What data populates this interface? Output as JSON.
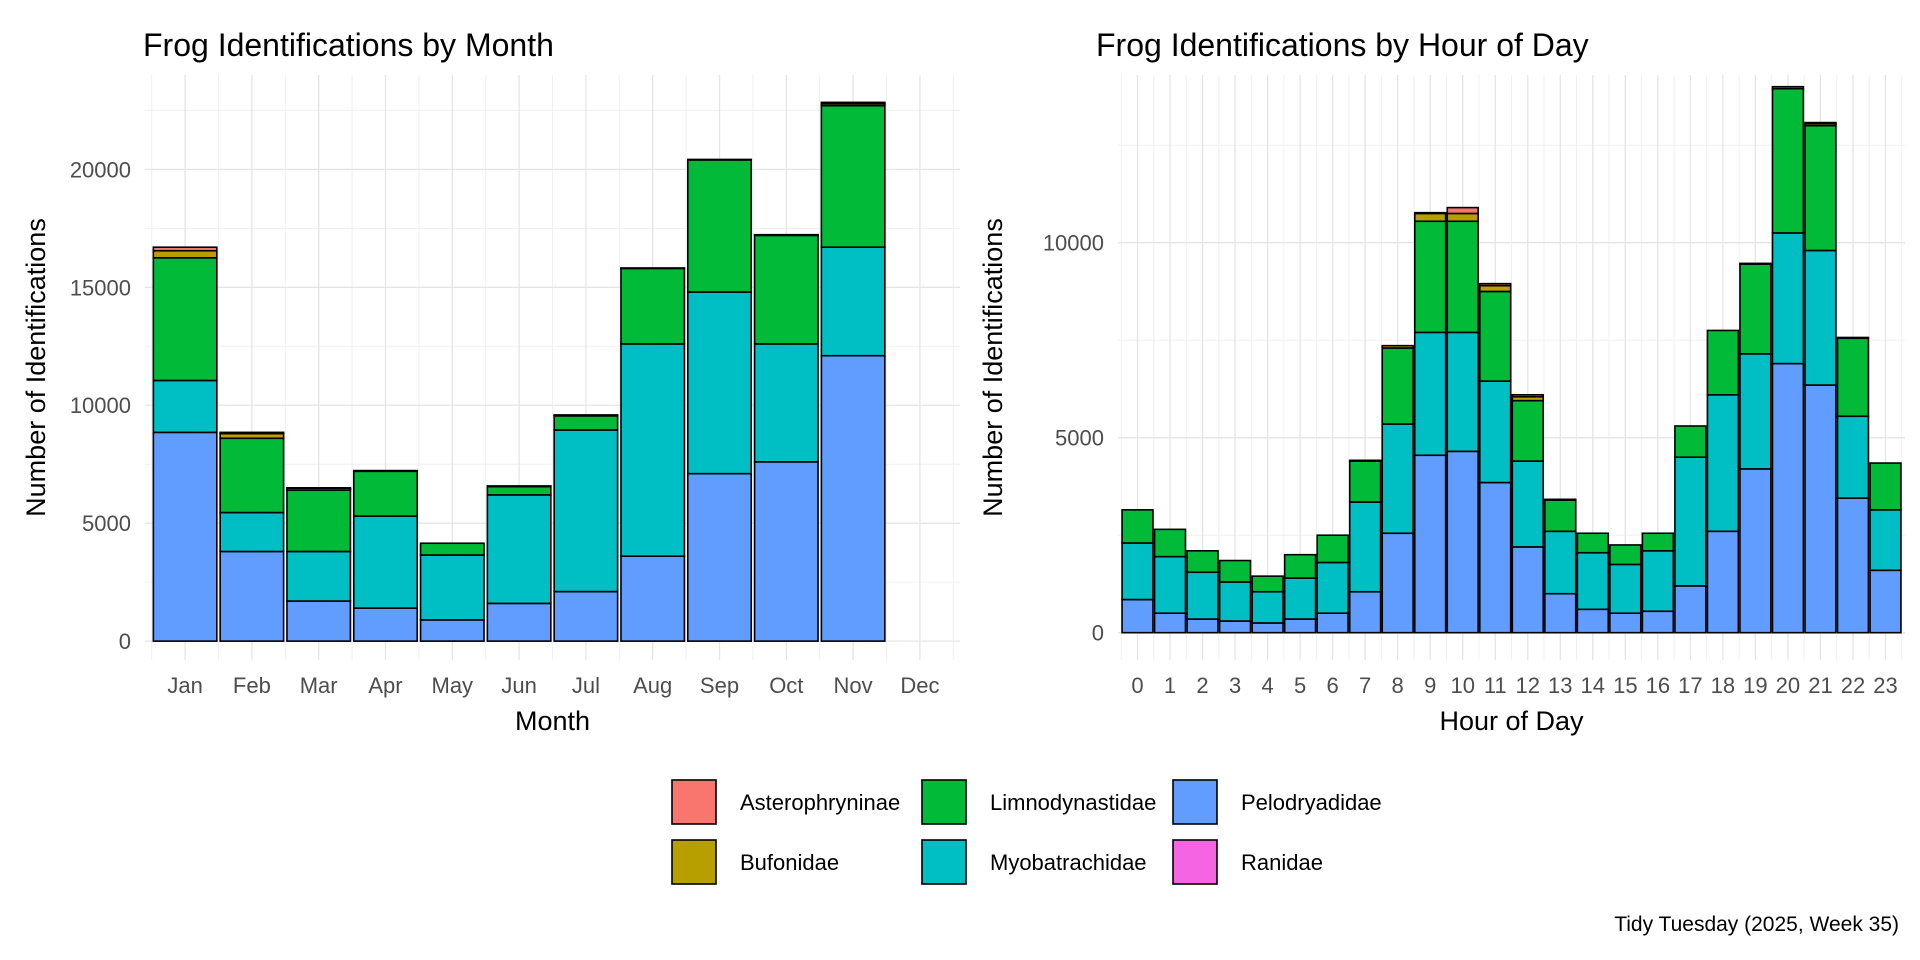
{
  "chart_data": [
    {
      "type": "bar",
      "stacked": true,
      "title": "Frog Identifications by Month",
      "xlabel": "Month",
      "ylabel": "Number of Identifications",
      "categories": [
        "Jan",
        "Feb",
        "Mar",
        "Apr",
        "May",
        "Jun",
        "Jul",
        "Aug",
        "Sep",
        "Oct",
        "Nov",
        "Dec"
      ],
      "ylim": [
        -800,
        24000
      ],
      "yticks": [
        0,
        5000,
        10000,
        15000,
        20000
      ],
      "grid": true,
      "series": [
        {
          "name": "Pelodryadidae",
          "values": [
            8850,
            3800,
            1700,
            1400,
            900,
            1600,
            2100,
            3600,
            7100,
            7600,
            12100,
            0
          ]
        },
        {
          "name": "Myobatrachidae",
          "values": [
            2200,
            1650,
            2100,
            3900,
            2750,
            4600,
            6850,
            9000,
            7700,
            5000,
            4600,
            0
          ]
        },
        {
          "name": "Limnodynastidae",
          "values": [
            5200,
            3150,
            2600,
            1900,
            500,
            350,
            600,
            3200,
            5600,
            4600,
            6000,
            0
          ]
        },
        {
          "name": "Bufonidae",
          "values": [
            300,
            200,
            80,
            30,
            0,
            30,
            20,
            20,
            20,
            30,
            80,
            0
          ]
        },
        {
          "name": "Ranidae",
          "values": [
            0,
            0,
            0,
            0,
            0,
            0,
            0,
            0,
            0,
            0,
            0,
            0
          ]
        },
        {
          "name": "Asterophryninae",
          "values": [
            150,
            50,
            20,
            0,
            0,
            0,
            20,
            0,
            0,
            0,
            60,
            0
          ]
        }
      ]
    },
    {
      "type": "bar",
      "stacked": true,
      "title": "Frog Identifications by Hour of Day",
      "xlabel": "Hour of Day",
      "ylabel": "Number of Identifications",
      "categories": [
        "0",
        "1",
        "2",
        "3",
        "4",
        "5",
        "6",
        "7",
        "8",
        "9",
        "10",
        "11",
        "12",
        "13",
        "14",
        "15",
        "16",
        "17",
        "18",
        "19",
        "20",
        "21",
        "22",
        "23"
      ],
      "ylim": [
        -700,
        14300
      ],
      "yticks": [
        0,
        5000,
        10000
      ],
      "grid": true,
      "series": [
        {
          "name": "Pelodryadidae",
          "values": [
            850,
            500,
            350,
            300,
            250,
            350,
            500,
            1050,
            2550,
            4550,
            4650,
            3850,
            2200,
            1000,
            600,
            500,
            550,
            1200,
            2600,
            4200,
            6900,
            6350,
            3450,
            1600
          ]
        },
        {
          "name": "Myobatrachidae",
          "values": [
            1450,
            1450,
            1200,
            1000,
            800,
            1050,
            1300,
            2300,
            2800,
            3150,
            3050,
            2600,
            2200,
            1600,
            1450,
            1250,
            1550,
            3300,
            3500,
            2950,
            3350,
            3450,
            2100,
            1550
          ]
        },
        {
          "name": "Limnodynastidae",
          "values": [
            850,
            700,
            550,
            550,
            400,
            600,
            700,
            1050,
            1950,
            2850,
            2850,
            2300,
            1550,
            800,
            500,
            500,
            450,
            800,
            1650,
            2300,
            3700,
            3200,
            2000,
            1200
          ]
        },
        {
          "name": "Bufonidae",
          "values": [
            0,
            0,
            0,
            0,
            0,
            0,
            0,
            20,
            60,
            200,
            200,
            150,
            100,
            20,
            0,
            0,
            0,
            0,
            0,
            20,
            50,
            50,
            20,
            0
          ]
        },
        {
          "name": "Ranidae",
          "values": [
            0,
            0,
            0,
            0,
            0,
            0,
            0,
            0,
            0,
            0,
            0,
            0,
            0,
            0,
            0,
            0,
            0,
            0,
            0,
            0,
            0,
            0,
            0,
            0
          ]
        },
        {
          "name": "Asterophryninae",
          "values": [
            0,
            0,
            0,
            0,
            0,
            0,
            0,
            0,
            0,
            20,
            150,
            50,
            50,
            0,
            0,
            0,
            0,
            0,
            0,
            0,
            0,
            30,
            0,
            0
          ]
        }
      ]
    }
  ],
  "legend": {
    "placement": "bottom",
    "items": [
      {
        "label": "Asterophryninae",
        "color": "#F8766D"
      },
      {
        "label": "Bufonidae",
        "color": "#B79F00"
      },
      {
        "label": "Limnodynastidae",
        "color": "#00BA38"
      },
      {
        "label": "Myobatrachidae",
        "color": "#00BFC4"
      },
      {
        "label": "Pelodryadidae",
        "color": "#619CFF"
      },
      {
        "label": "Ranidae",
        "color": "#F564E3"
      }
    ]
  },
  "caption": "Tidy Tuesday (2025, Week 35)"
}
